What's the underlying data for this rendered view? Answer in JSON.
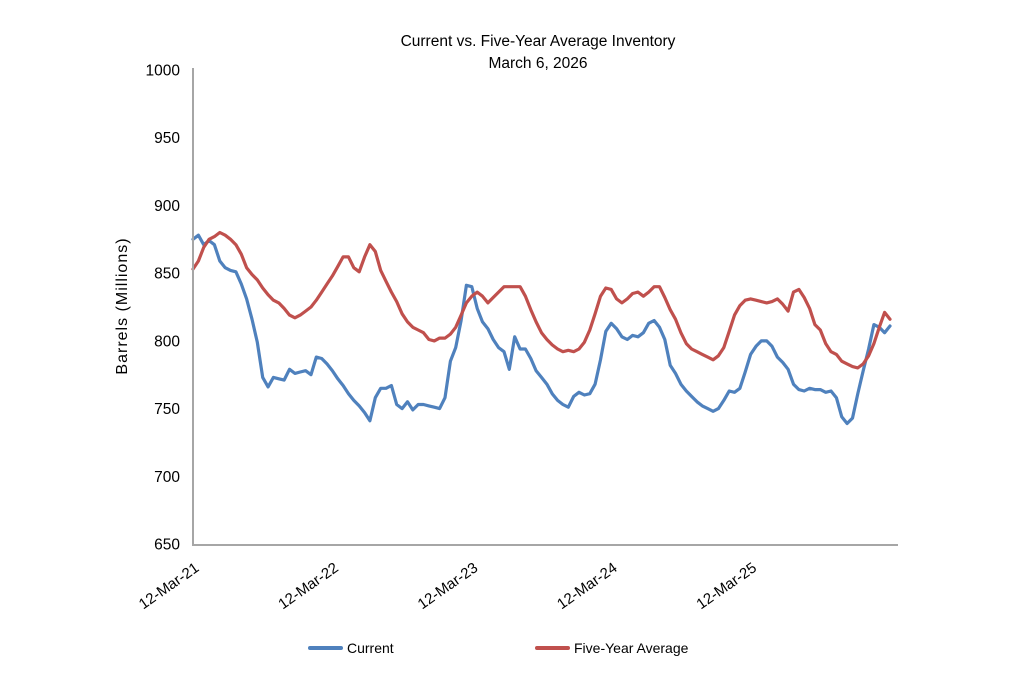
{
  "chart_data": {
    "type": "line",
    "title": "Current vs. Five-Year Average Inventory",
    "subtitle": "March 6, 2026",
    "xlabel": "",
    "ylabel": "Barrels (Millions)",
    "ylim": [
      650,
      1000
    ],
    "y_ticks": [
      650,
      700,
      750,
      800,
      850,
      900,
      950,
      1000
    ],
    "grid": false,
    "legend_position": "bottom",
    "sampling": "biweekly points from 12-Mar-21 to 6-Mar-26",
    "x_ticks": [
      {
        "index": 0,
        "label": "12-Mar-21"
      },
      {
        "index": 26,
        "label": "12-Mar-22"
      },
      {
        "index": 52,
        "label": "12-Mar-23"
      },
      {
        "index": 78,
        "label": "12-Mar-24"
      },
      {
        "index": 104,
        "label": "12-Mar-25"
      }
    ],
    "series": [
      {
        "name": "Current",
        "color": "#4F81BD",
        "values": [
          875,
          878,
          871,
          874,
          871,
          859,
          854,
          852,
          851,
          842,
          831,
          816,
          799,
          773,
          766,
          773,
          772,
          771,
          779,
          776,
          777,
          778,
          775,
          788,
          787,
          783,
          778,
          772,
          767,
          761,
          756,
          752,
          747,
          741,
          758,
          765,
          765,
          767,
          753,
          750,
          755,
          749,
          753,
          753,
          752,
          751,
          750,
          758,
          785,
          795,
          815,
          841,
          840,
          824,
          814,
          809,
          801,
          795,
          792,
          779,
          803,
          794,
          794,
          787,
          778,
          773,
          768,
          761,
          756,
          753,
          751,
          759,
          762,
          760,
          761,
          768,
          786,
          807,
          813,
          809,
          803,
          801,
          804,
          803,
          806,
          813,
          815,
          810,
          801,
          782,
          776,
          768,
          763,
          759,
          755,
          752,
          750,
          748,
          750,
          756,
          763,
          762,
          765,
          777,
          790,
          796,
          800,
          800,
          796,
          788,
          784,
          779,
          768,
          764,
          763,
          765,
          764,
          764,
          762,
          763,
          758,
          744,
          739,
          743,
          761,
          778,
          794,
          812,
          810,
          806,
          811
        ]
      },
      {
        "name": "Five-Year Average",
        "color": "#C0504D",
        "values": [
          853,
          859,
          869,
          875,
          877,
          880,
          878,
          875,
          871,
          864,
          854,
          849,
          845,
          839,
          834,
          830,
          828,
          824,
          819,
          817,
          819,
          822,
          825,
          830,
          836,
          842,
          848,
          855,
          862,
          862,
          854,
          851,
          862,
          871,
          866,
          852,
          844,
          836,
          829,
          820,
          814,
          810,
          808,
          806,
          801,
          800,
          802,
          802,
          805,
          810,
          819,
          828,
          833,
          836,
          833,
          828,
          832,
          836,
          840,
          840,
          840,
          840,
          833,
          823,
          814,
          806,
          801,
          797,
          794,
          792,
          793,
          792,
          794,
          799,
          808,
          820,
          833,
          839,
          838,
          831,
          828,
          831,
          835,
          836,
          833,
          836,
          840,
          840,
          832,
          823,
          816,
          806,
          798,
          794,
          792,
          790,
          788,
          786,
          789,
          795,
          807,
          819,
          826,
          830,
          831,
          830,
          829,
          828,
          829,
          831,
          827,
          822,
          836,
          838,
          832,
          824,
          812,
          808,
          798,
          792,
          790,
          785,
          783,
          781,
          780,
          783,
          789,
          798,
          810,
          821,
          816
        ]
      }
    ],
    "axis_color": "#A6A6A6",
    "text_color": "#000000"
  },
  "legend": {
    "current_label": "Current",
    "five_year_label": "Five-Year Average"
  }
}
